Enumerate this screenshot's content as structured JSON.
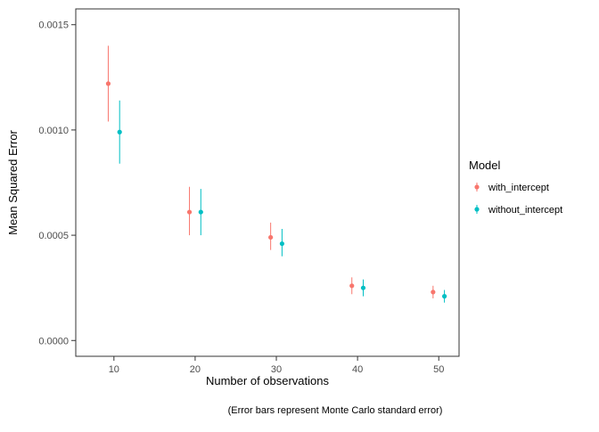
{
  "chart_data": {
    "type": "scatter",
    "title": "",
    "xlabel": "Number of observations",
    "ylabel": "Mean Squared Error",
    "caption": "(Error bars represent Monte Carlo standard error)",
    "legend_title": "Model",
    "legend_position": "right",
    "grid": false,
    "panel_border_color": "#333333",
    "background_color": "#ffffff",
    "x_ticks": [
      10,
      20,
      30,
      40,
      50
    ],
    "x_tick_labels": [
      "10",
      "20",
      "30",
      "40",
      "50"
    ],
    "y_ticks": [
      0.0,
      0.0005,
      0.001,
      0.0015
    ],
    "y_tick_labels": [
      "0.0000",
      "0.0005",
      "0.0010",
      "0.0015"
    ],
    "xlim": [
      5.3,
      52.5
    ],
    "ylim": [
      -7.5e-05,
      0.001575
    ],
    "x": [
      10,
      20,
      30,
      40,
      50
    ],
    "series": [
      {
        "name": "with_intercept",
        "color": "#F8766D",
        "dodge": -0.7,
        "values": [
          0.00122,
          0.00061,
          0.00049,
          0.00026,
          0.00023
        ],
        "lower": [
          0.00104,
          0.0005,
          0.00043,
          0.00022,
          0.0002
        ],
        "upper": [
          0.0014,
          0.00073,
          0.00056,
          0.0003,
          0.00026
        ]
      },
      {
        "name": "without_intercept",
        "color": "#00BFC4",
        "dodge": 0.7,
        "values": [
          0.00099,
          0.00061,
          0.00046,
          0.00025,
          0.00021
        ],
        "lower": [
          0.00084,
          0.0005,
          0.0004,
          0.00021,
          0.00018
        ],
        "upper": [
          0.00114,
          0.00072,
          0.00053,
          0.00029,
          0.00024
        ]
      }
    ]
  }
}
